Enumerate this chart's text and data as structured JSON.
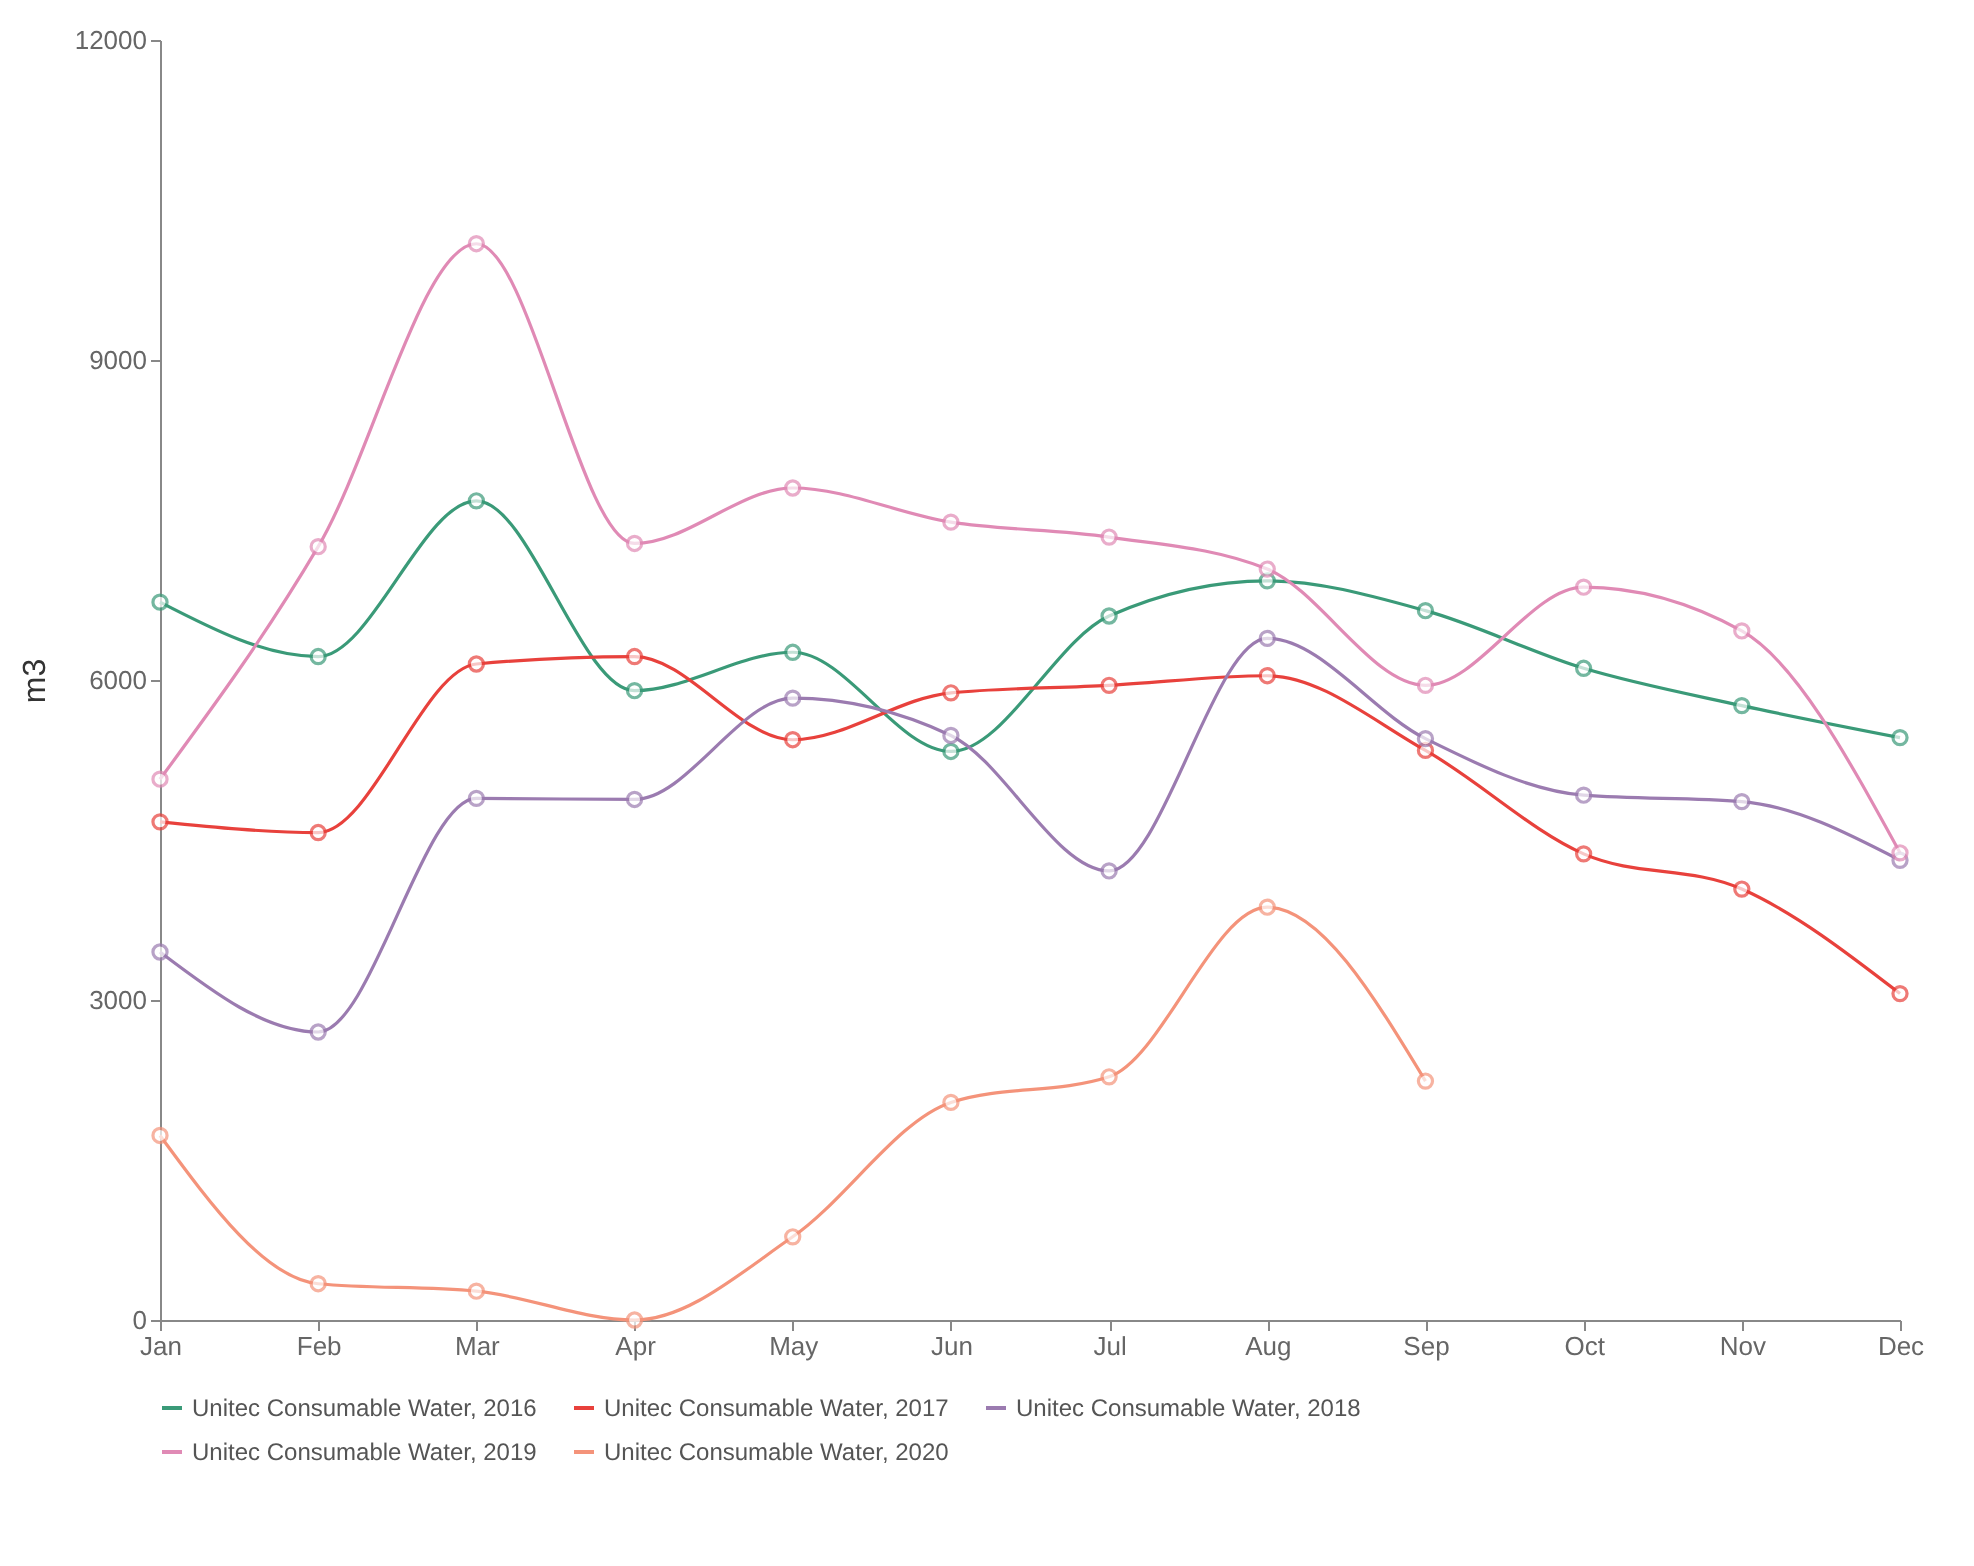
{
  "chart_data": {
    "type": "line",
    "ylabel": "m3",
    "categories": [
      "Jan",
      "Feb",
      "Mar",
      "Apr",
      "May",
      "Jun",
      "Jul",
      "Aug",
      "Sep",
      "Oct",
      "Nov",
      "Dec"
    ],
    "series": [
      {
        "name": "Unitec Consumable Water, 2016",
        "color": "#3a9a78",
        "values": [
          6730,
          6220,
          7680,
          5900,
          6260,
          5330,
          6600,
          6930,
          6650,
          6110,
          5760,
          5460
        ]
      },
      {
        "name": "Unitec Consumable Water, 2017",
        "color": "#e8413c",
        "values": [
          4670,
          4570,
          6150,
          6220,
          5440,
          5880,
          5950,
          6040,
          5340,
          4370,
          4040,
          3060
        ]
      },
      {
        "name": "Unitec Consumable Water, 2018",
        "color": "#9b7bb0",
        "values": [
          3450,
          2700,
          4890,
          4880,
          5830,
          5480,
          4210,
          6390,
          5450,
          4920,
          4860,
          4310
        ]
      },
      {
        "name": "Unitec Consumable Water, 2019",
        "color": "#e08ab5",
        "values": [
          5070,
          7250,
          10090,
          7280,
          7800,
          7480,
          7340,
          7040,
          5950,
          6870,
          6460,
          4380
        ]
      },
      {
        "name": "Unitec Consumable Water, 2020",
        "color": "#f4937a",
        "values": [
          1730,
          340,
          270,
          0,
          780,
          2040,
          2280,
          3870,
          2240,
          null,
          null,
          null
        ]
      }
    ],
    "ylim": [
      0,
      12000
    ],
    "yticks": [
      0,
      3000,
      6000,
      9000,
      12000
    ],
    "grid": false,
    "legend": "bottom",
    "marker": "circle",
    "line_style": "solid"
  }
}
